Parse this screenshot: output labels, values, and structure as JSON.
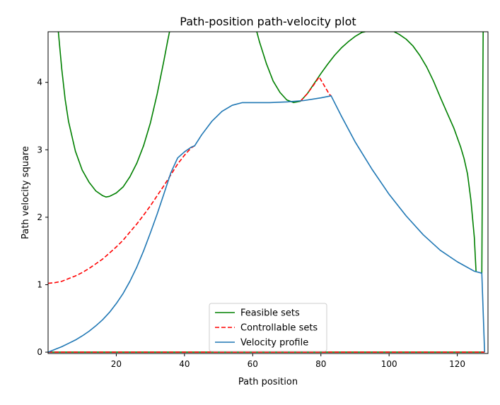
{
  "chart_data": {
    "type": "line",
    "title": "Path-position path-velocity plot",
    "xlabel": "Path position",
    "ylabel": "Path velocity square",
    "xlim": [
      0,
      129
    ],
    "ylim": [
      -0.02,
      4.75
    ],
    "xticks": [
      20,
      40,
      60,
      80,
      100,
      120
    ],
    "yticks": [
      0,
      1,
      2,
      3,
      4
    ],
    "grid": false,
    "legend_position": "lower center",
    "series": [
      {
        "name": "Feasible sets",
        "color": "#008000",
        "style": "solid",
        "segments": [
          [
            [
              3.0,
              4.75
            ],
            [
              4.0,
              4.2
            ],
            [
              5.0,
              3.75
            ],
            [
              6.0,
              3.42
            ],
            [
              8.0,
              2.98
            ],
            [
              10.0,
              2.7
            ],
            [
              12.0,
              2.52
            ],
            [
              14.0,
              2.39
            ],
            [
              16.0,
              2.32
            ],
            [
              17.0,
              2.3
            ],
            [
              18.0,
              2.31
            ],
            [
              20.0,
              2.36
            ],
            [
              22.0,
              2.45
            ],
            [
              24.0,
              2.6
            ],
            [
              26.0,
              2.8
            ],
            [
              28.0,
              3.06
            ],
            [
              30.0,
              3.4
            ],
            [
              32.0,
              3.83
            ],
            [
              34.0,
              4.33
            ],
            [
              35.0,
              4.6
            ],
            [
              35.6,
              4.75
            ]
          ],
          [
            [
              61.2,
              4.75
            ],
            [
              62.0,
              4.6
            ],
            [
              64.0,
              4.28
            ],
            [
              66.0,
              4.02
            ],
            [
              68.0,
              3.85
            ],
            [
              70.0,
              3.74
            ],
            [
              72.0,
              3.7
            ],
            [
              74.0,
              3.72
            ],
            [
              76.0,
              3.83
            ],
            [
              78.0,
              3.98
            ],
            [
              80.0,
              4.13
            ],
            [
              82.0,
              4.27
            ],
            [
              84.0,
              4.4
            ],
            [
              86.0,
              4.51
            ],
            [
              88.0,
              4.6
            ],
            [
              90.0,
              4.68
            ],
            [
              92.0,
              4.74
            ],
            [
              93.0,
              4.75
            ]
          ],
          [
            [
              101.5,
              4.75
            ],
            [
              103.0,
              4.71
            ],
            [
              105.0,
              4.64
            ],
            [
              107.0,
              4.54
            ],
            [
              109.0,
              4.4
            ],
            [
              111.0,
              4.23
            ],
            [
              113.0,
              4.02
            ],
            [
              115.0,
              3.78
            ],
            [
              117.0,
              3.55
            ],
            [
              119.0,
              3.32
            ],
            [
              121.0,
              3.04
            ],
            [
              122.0,
              2.87
            ],
            [
              123.0,
              2.64
            ],
            [
              124.0,
              2.25
            ],
            [
              125.0,
              1.7
            ],
            [
              125.5,
              1.2
            ]
          ],
          [
            [
              127.2,
              1.17
            ],
            [
              127.35,
              2.5
            ],
            [
              127.5,
              4.1
            ],
            [
              127.6,
              4.75
            ]
          ],
          [
            [
              0.0,
              0.0
            ],
            [
              128.0,
              0.0
            ]
          ]
        ]
      },
      {
        "name": "Controllable sets",
        "color": "#ff0000",
        "style": "dashed",
        "segments": [
          [
            [
              0.0,
              1.02
            ],
            [
              2.0,
              1.03
            ],
            [
              4.0,
              1.05
            ],
            [
              6.0,
              1.09
            ],
            [
              8.0,
              1.13
            ],
            [
              10.0,
              1.18
            ],
            [
              12.0,
              1.24
            ],
            [
              14.0,
              1.31
            ],
            [
              16.0,
              1.38
            ],
            [
              18.0,
              1.47
            ],
            [
              20.0,
              1.56
            ],
            [
              22.0,
              1.66
            ],
            [
              24.0,
              1.78
            ],
            [
              26.0,
              1.9
            ],
            [
              28.0,
              2.03
            ],
            [
              30.0,
              2.17
            ],
            [
              32.0,
              2.32
            ],
            [
              34.0,
              2.47
            ],
            [
              36.0,
              2.63
            ],
            [
              38.0,
              2.79
            ],
            [
              40.0,
              2.92
            ],
            [
              42.0,
              3.03
            ],
            [
              43.0,
              3.06
            ]
          ],
          [
            [
              74.0,
              3.72
            ],
            [
              76.0,
              3.83
            ],
            [
              78.0,
              3.97
            ],
            [
              79.5,
              4.08
            ],
            [
              81.0,
              3.95
            ],
            [
              82.5,
              3.82
            ],
            [
              83.0,
              3.8
            ]
          ],
          [
            [
              0.0,
              0.0
            ],
            [
              128.0,
              0.0
            ]
          ]
        ]
      },
      {
        "name": "Velocity profile",
        "color": "#1f77b4",
        "style": "solid",
        "segments": [
          [
            [
              0.0,
              0.0
            ],
            [
              2.0,
              0.04
            ],
            [
              4.0,
              0.08
            ],
            [
              6.0,
              0.13
            ],
            [
              8.0,
              0.18
            ],
            [
              10.0,
              0.24
            ],
            [
              12.0,
              0.31
            ],
            [
              14.0,
              0.39
            ],
            [
              16.0,
              0.48
            ],
            [
              18.0,
              0.59
            ],
            [
              20.0,
              0.72
            ],
            [
              22.0,
              0.87
            ],
            [
              24.0,
              1.05
            ],
            [
              26.0,
              1.26
            ],
            [
              28.0,
              1.5
            ],
            [
              30.0,
              1.77
            ],
            [
              32.0,
              2.05
            ],
            [
              34.0,
              2.35
            ],
            [
              36.0,
              2.66
            ],
            [
              38.0,
              2.88
            ],
            [
              40.0,
              2.97
            ],
            [
              42.0,
              3.04
            ],
            [
              43.0,
              3.06
            ],
            [
              45.0,
              3.22
            ],
            [
              48.0,
              3.42
            ],
            [
              51.0,
              3.57
            ],
            [
              54.0,
              3.66
            ],
            [
              57.0,
              3.7
            ],
            [
              60.0,
              3.7
            ],
            [
              65.0,
              3.7
            ],
            [
              70.0,
              3.71
            ],
            [
              75.0,
              3.73
            ],
            [
              80.0,
              3.77
            ],
            [
              83.0,
              3.8
            ],
            [
              86.0,
              3.5
            ],
            [
              90.0,
              3.12
            ],
            [
              95.0,
              2.71
            ],
            [
              100.0,
              2.34
            ],
            [
              105.0,
              2.02
            ],
            [
              110.0,
              1.74
            ],
            [
              115.0,
              1.51
            ],
            [
              120.0,
              1.34
            ],
            [
              125.0,
              1.2
            ],
            [
              127.2,
              1.17
            ],
            [
              128.0,
              0.0
            ]
          ]
        ]
      }
    ]
  }
}
